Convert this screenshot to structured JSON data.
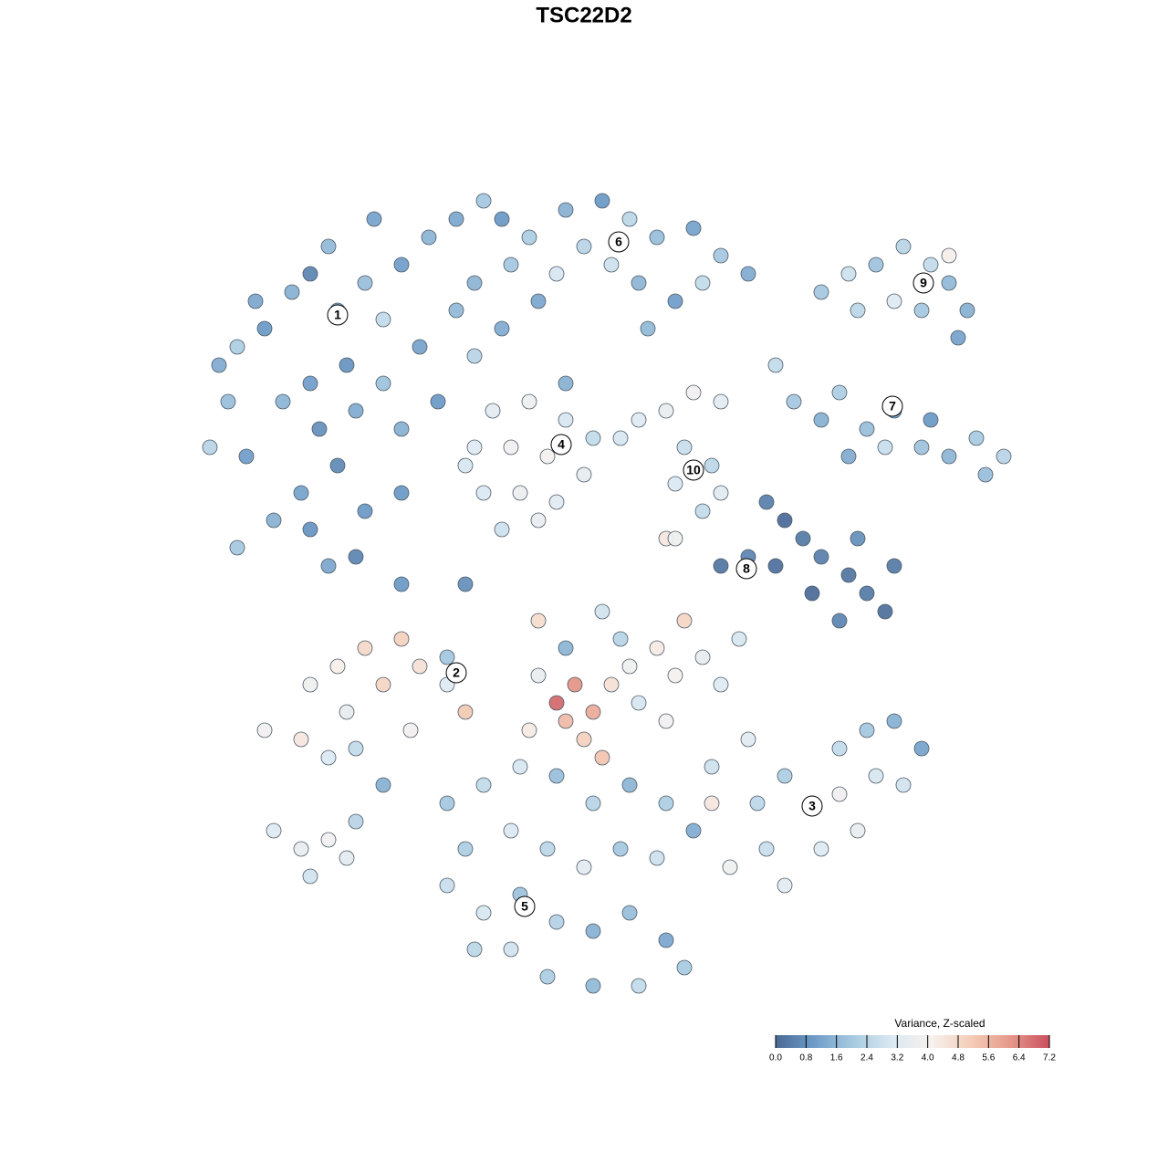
{
  "chart_data": {
    "type": "scatter",
    "title": "TSC22D2",
    "xlim": [
      -64,
      64
    ],
    "ylim": [
      -64,
      64
    ],
    "x": [
      -40,
      -38,
      -35,
      -32,
      -30,
      -27,
      -24,
      -20,
      -17,
      -14,
      -11,
      -9,
      -26,
      -30,
      -33,
      -29,
      -25,
      -22,
      -18,
      -14,
      -12,
      -16,
      -20,
      -27,
      -31,
      -24,
      -30,
      -34,
      -28,
      -25,
      -38,
      -41,
      -37,
      -39,
      -20,
      -12,
      -22,
      -9,
      -8,
      -36,
      -28,
      -23,
      -6,
      -2,
      2,
      5,
      8,
      12,
      15,
      18,
      3,
      -3,
      6,
      10,
      0,
      13,
      -5,
      7,
      26,
      29,
      32,
      35,
      38,
      40,
      42,
      41,
      34,
      30,
      37,
      40,
      21,
      23,
      26,
      28,
      31,
      34,
      37,
      40,
      43,
      46,
      44,
      33,
      29,
      38,
      -10,
      -6,
      -2,
      1,
      -12,
      -8,
      -4,
      0,
      -11,
      -7,
      -3,
      -9,
      -5,
      -2,
      -13,
      6,
      9,
      12,
      15,
      4,
      11,
      14,
      10,
      13,
      15,
      9,
      15,
      18,
      21,
      24,
      22,
      26,
      29,
      31,
      33,
      28,
      25,
      30,
      34,
      20,
      -30,
      -27,
      -24,
      -20,
      -18,
      -15,
      -13,
      -15,
      -22,
      -26,
      -31,
      -28,
      -25,
      -22,
      -19,
      -35,
      -3,
      -1,
      1,
      -2,
      0,
      3,
      5,
      8,
      10,
      13,
      15,
      6,
      -5,
      -6,
      4,
      11,
      2,
      -2,
      9,
      17,
      14,
      18,
      22,
      25,
      28,
      31,
      34,
      37,
      35,
      30,
      26,
      20,
      16,
      22,
      19,
      32,
      28,
      14,
      -15,
      -11,
      -7,
      -3,
      1,
      5,
      9,
      12,
      8,
      4,
      0,
      -4,
      -8,
      -13,
      -15,
      -11,
      -7,
      -3,
      1,
      5,
      9,
      11,
      6,
      1,
      -4,
      -8,
      -12,
      -34,
      -31,
      -28,
      -26,
      -30,
      -25,
      -20,
      -13,
      2,
      -5,
      10
    ],
    "y": [
      24,
      26,
      28,
      32,
      34,
      30,
      33,
      35,
      38,
      40,
      42,
      40,
      24,
      22,
      20,
      17,
      19,
      22,
      26,
      30,
      25,
      20,
      17,
      13,
      10,
      8,
      6,
      7,
      2,
      3,
      4,
      15,
      14,
      20,
      10,
      33,
      29,
      28,
      35,
      31,
      37,
      40,
      38,
      41,
      42,
      40,
      38,
      39,
      36,
      34,
      35,
      34,
      33,
      31,
      37,
      33,
      31,
      28,
      32,
      34,
      35,
      37,
      35,
      33,
      30,
      27,
      31,
      30,
      30,
      36,
      24,
      20,
      18,
      21,
      17,
      19,
      15,
      14,
      16,
      14,
      12,
      15,
      14,
      18,
      19,
      20,
      18,
      16,
      15,
      15,
      14,
      12,
      10,
      10,
      9,
      6,
      7,
      22,
      13,
      18,
      19,
      21,
      20,
      16,
      15,
      13,
      11,
      8,
      10,
      5,
      2,
      3,
      2,
      5,
      7,
      3,
      1,
      -1,
      -3,
      -4,
      -1,
      5,
      2,
      9,
      -11,
      -9,
      -7,
      -6,
      -9,
      -8,
      -14,
      -11,
      -11,
      -14,
      -17,
      -19,
      -18,
      -22,
      -16,
      -16,
      -13,
      -11,
      -14,
      -15,
      -17,
      -11,
      -9,
      -7,
      -10,
      -8,
      -11,
      -13,
      -10,
      -16,
      -6,
      -4,
      -19,
      -7,
      -15,
      -6,
      -20,
      -17,
      -21,
      -24,
      -18,
      -16,
      -15,
      -18,
      -22,
      -27,
      -29,
      -29,
      -31,
      -33,
      -24,
      -21,
      -23,
      -24,
      -24,
      -22,
      -20,
      -21,
      -24,
      -22,
      -24,
      -27,
      -30,
      -29,
      -31,
      -29,
      -27,
      -29,
      -33,
      -36,
      -34,
      -37,
      -38,
      -36,
      -39,
      -42,
      -44,
      -44,
      -43,
      -40,
      -40,
      -27,
      -29,
      -28,
      -30,
      -32,
      -26,
      0,
      0,
      -3,
      -4,
      5
    ],
    "values": [
      1.4,
      2.2,
      1.0,
      1.5,
      0.6,
      1.2,
      1.8,
      1.1,
      1.6,
      1.3,
      2.0,
      1.0,
      0.9,
      1.1,
      1.6,
      0.8,
      1.4,
      1.9,
      1.2,
      1.7,
      2.4,
      1.0,
      1.5,
      0.7,
      1.2,
      1.0,
      0.9,
      1.5,
      1.3,
      0.6,
      2.0,
      2.4,
      1.1,
      1.8,
      1.0,
      1.6,
      2.6,
      1.4,
      2.0,
      1.3,
      1.7,
      1.2,
      2.2,
      1.5,
      1.0,
      2.5,
      1.8,
      1.2,
      2.0,
      1.4,
      2.8,
      3.0,
      1.6,
      1.1,
      2.4,
      2.6,
      1.3,
      1.7,
      2.0,
      2.8,
      1.9,
      2.4,
      2.6,
      1.7,
      1.5,
      1.2,
      3.2,
      2.5,
      2.0,
      4.2,
      2.6,
      2.0,
      1.5,
      2.2,
      1.8,
      1.2,
      1.9,
      1.6,
      2.1,
      2.4,
      1.8,
      2.7,
      1.4,
      1.0,
      3.4,
      3.8,
      3.0,
      2.6,
      3.2,
      3.9,
      4.0,
      3.5,
      3.1,
      3.7,
      3.3,
      2.8,
      3.6,
      1.5,
      3.0,
      3.2,
      3.6,
      3.9,
      3.4,
      3.0,
      2.7,
      2.5,
      3.1,
      2.6,
      3.3,
      4.4,
      0.3,
      0.6,
      0.2,
      0.4,
      0.1,
      0.5,
      0.3,
      0.4,
      0.2,
      0.6,
      0.1,
      0.8,
      0.4,
      0.5,
      3.8,
      4.2,
      4.8,
      5.0,
      4.6,
      2.0,
      5.2,
      3.2,
      4.9,
      3.5,
      4.4,
      3.1,
      2.6,
      1.5,
      3.9,
      3.9,
      6.8,
      6.2,
      5.8,
      5.5,
      5.0,
      4.6,
      3.8,
      4.3,
      4.0,
      3.5,
      3.2,
      3.0,
      3.6,
      4.3,
      2.4,
      4.9,
      5.3,
      1.6,
      3.9,
      3.0,
      2.8,
      3.3,
      2.2,
      3.5,
      2.6,
      2.0,
      1.5,
      1.2,
      2.9,
      3.6,
      3.2,
      2.7,
      3.8,
      3.4,
      2.5,
      3.0,
      3.9,
      4.4,
      2.0,
      2.6,
      3.0,
      1.8,
      2.4,
      1.6,
      2.2,
      1.4,
      2.8,
      2.0,
      3.4,
      2.5,
      3.1,
      2.2,
      2.7,
      3.0,
      1.9,
      2.3,
      1.5,
      1.8,
      1.3,
      2.1,
      2.6,
      1.7,
      2.2,
      2.9,
      2.5,
      3.2,
      3.6,
      3.9,
      3.4,
      2.9,
      2.4,
      1.0,
      0.8,
      2.9,
      4.7,
      3.8
    ],
    "colormap": [
      "#4a6994",
      "#6f9cc8",
      "#a8cbe1",
      "#dce9f2",
      "#f6f1ee",
      "#f4cdb8",
      "#e6988a",
      "#c8505f"
    ],
    "clusters": [
      {
        "label": "1",
        "x": -27,
        "y": 29.5
      },
      {
        "label": "6",
        "x": 3.8,
        "y": 37.5
      },
      {
        "label": "9",
        "x": 37.2,
        "y": 33
      },
      {
        "label": "7",
        "x": 33.8,
        "y": 19.5
      },
      {
        "label": "4",
        "x": -2.5,
        "y": 15.3
      },
      {
        "label": "10",
        "x": 12,
        "y": 12.5
      },
      {
        "label": "8",
        "x": 17.8,
        "y": 1.7
      },
      {
        "label": "2",
        "x": -14,
        "y": -9.7
      },
      {
        "label": "3",
        "x": 25,
        "y": -24.3
      },
      {
        "label": "5",
        "x": -6.5,
        "y": -35.3
      }
    ],
    "colorbar": {
      "title": "Variance, Z-scaled",
      "lim": [
        0,
        7.2
      ],
      "ticks": [
        {
          "value": 0,
          "label": "0.0"
        },
        0.8,
        1.6,
        2.4,
        3.2,
        {
          "value": 4,
          "label": "4.0"
        },
        4.8,
        5.6,
        6.4,
        7.2
      ]
    }
  }
}
